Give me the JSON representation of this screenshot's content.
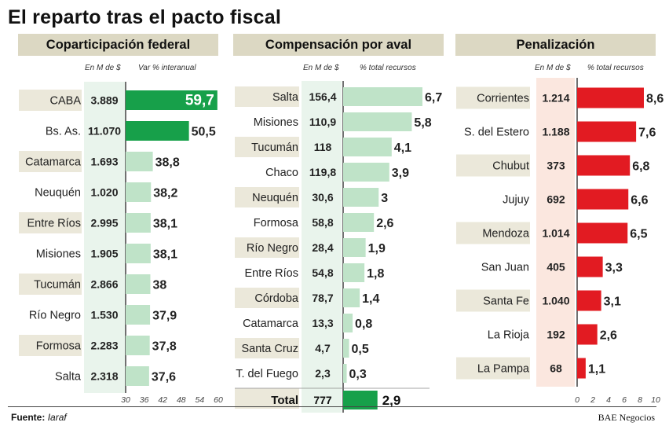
{
  "title": "El reparto tras el pacto fiscal",
  "colors": {
    "green": "#17a04a",
    "light_green": "#bfe3c8",
    "red": "#e21b22",
    "shade_green": "#e9f4ec",
    "shade_red": "#fbe7df",
    "row_band": "#ebe8da"
  },
  "footer": {
    "source_label": "Fuente:",
    "source_value": "Iaraf",
    "credit": "BAE Negocios"
  },
  "chart_data": [
    {
      "type": "bar",
      "id": "coparticipacion",
      "title": "Coparticipación federal",
      "value_header": "En M de $",
      "bar_header": "Var % interanual",
      "categories": [
        "CABA",
        "Bs. As.",
        "Catamarca",
        "Neuquén",
        "Entre Ríos",
        "Misiones",
        "Tucumán",
        "Río Negro",
        "Formosa",
        "Salta"
      ],
      "amounts": [
        "3.889",
        "11.070",
        "1.693",
        "1.020",
        "2.995",
        "1.905",
        "2.866",
        "1.530",
        "2.283",
        "2.318"
      ],
      "values": [
        59.7,
        50.5,
        38.8,
        38.2,
        38.1,
        38.1,
        38,
        37.9,
        37.8,
        37.6
      ],
      "labels": [
        "59,7",
        "50,5",
        "38,8",
        "38,2",
        "38,1",
        "38,1",
        "38",
        "37,9",
        "37,8",
        "37,6"
      ],
      "xlim": [
        30,
        60
      ],
      "ticks": [
        30,
        36,
        42,
        48,
        54,
        60
      ]
    },
    {
      "type": "bar",
      "id": "compensacion",
      "title": "Compensación por aval",
      "value_header": "En M de $",
      "bar_header": "% total recursos",
      "categories": [
        "Salta",
        "Misiones",
        "Tucumán",
        "Chaco",
        "Neuquén",
        "Formosa",
        "Río Negro",
        "Entre Ríos",
        "Córdoba",
        "Catamarca",
        "Santa Cruz",
        "T. del Fuego"
      ],
      "amounts": [
        "156,4",
        "110,9",
        "118",
        "119,8",
        "30,6",
        "58,8",
        "28,4",
        "54,8",
        "78,7",
        "13,3",
        "4,7",
        "2,3"
      ],
      "values": [
        6.7,
        5.8,
        4.1,
        3.9,
        3,
        2.6,
        1.9,
        1.8,
        1.4,
        0.8,
        0.5,
        0.3
      ],
      "labels": [
        "6,7",
        "5,8",
        "4,1",
        "3,9",
        "3",
        "2,6",
        "1,9",
        "1,8",
        "1,4",
        "0,8",
        "0,5",
        "0,3"
      ],
      "xlim": [
        0,
        7
      ],
      "total": {
        "label": "Total",
        "amount": "777",
        "value": 2.9,
        "value_label": "2,9"
      }
    },
    {
      "type": "bar",
      "id": "penalizacion",
      "title": "Penalización",
      "value_header": "En M de $",
      "bar_header": "% total recursos",
      "categories": [
        "Corrientes",
        "S. del Estero",
        "Chubut",
        "Jujuy",
        "Mendoza",
        "San Juan",
        "Santa Fe",
        "La Rioja",
        "La Pampa"
      ],
      "amounts": [
        "1.214",
        "1.188",
        "373",
        "692",
        "1.014",
        "405",
        "1.040",
        "192",
        "68"
      ],
      "values": [
        8.6,
        7.6,
        6.8,
        6.6,
        6.5,
        3.3,
        3.1,
        2.6,
        1.1
      ],
      "labels": [
        "8,6",
        "7,6",
        "6,8",
        "6,6",
        "6,5",
        "3,3",
        "3,1",
        "2,6",
        "1,1"
      ],
      "xlim": [
        0,
        10
      ],
      "ticks": [
        0,
        2,
        4,
        6,
        8,
        10
      ]
    }
  ]
}
